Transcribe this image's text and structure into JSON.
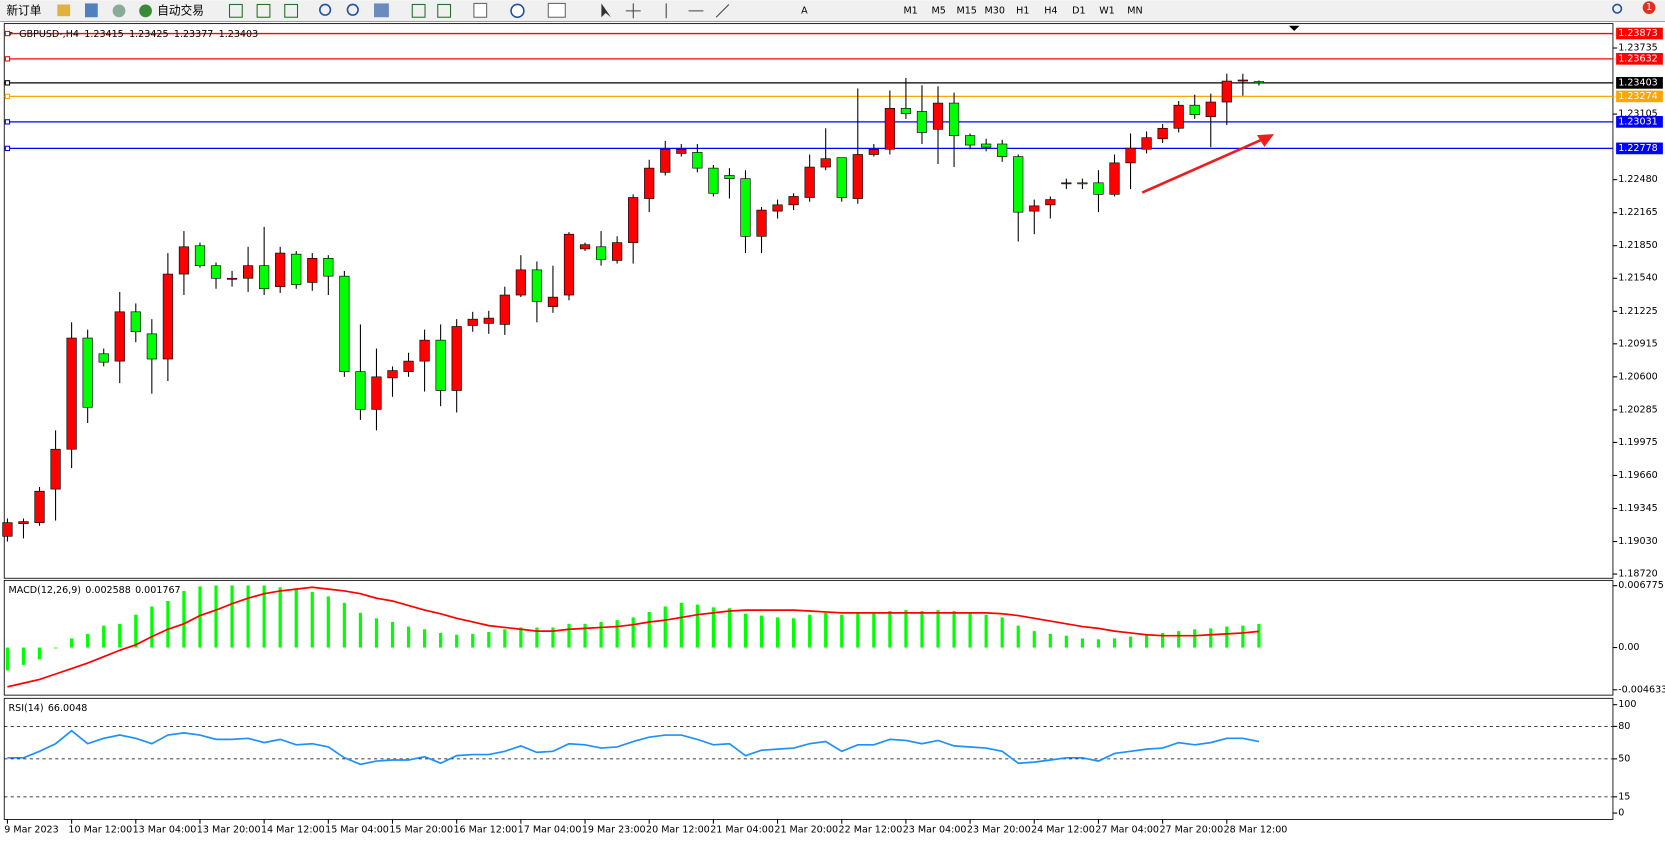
{
  "toolbar": {
    "new_order": "新订单",
    "auto_trading": "自动交易",
    "timeframes": [
      "M1",
      "M5",
      "M15",
      "M30",
      "H1",
      "H4",
      "D1",
      "W1",
      "MN"
    ],
    "badge": "1"
  },
  "chart_data": [
    {
      "type": "candlestick",
      "symbol": "GBPUSD-,H4",
      "categories": [
        "9 Mar 2023",
        null,
        null,
        null,
        "10 Mar 12:00",
        null,
        null,
        null,
        "13 Mar 04:00",
        null,
        null,
        null,
        "13 Mar 20:00",
        null,
        null,
        null,
        "14 Mar 12:00",
        null,
        null,
        null,
        "15 Mar 04:00",
        null,
        null,
        null,
        "15 Mar 20:00",
        null,
        null,
        null,
        "16 Mar 12:00",
        null,
        null,
        null,
        "17 Mar 04:00",
        null,
        null,
        null,
        "19 Mar 23:00",
        null,
        null,
        null,
        "20 Mar 12:00",
        null,
        null,
        null,
        "21 Mar 04:00",
        null,
        null,
        null,
        "21 Mar 20:00",
        null,
        null,
        null,
        "22 Mar 12:00",
        null,
        null,
        null,
        "23 Mar 04:00",
        null,
        null,
        null,
        "23 Mar 20:00",
        null,
        null,
        null,
        "24 Mar 12:00",
        null,
        null,
        null,
        "27 Mar 04:00",
        null,
        null,
        null,
        "27 Mar 20:00",
        null,
        null,
        null,
        "28 Mar 12:00",
        null,
        null
      ],
      "open": [
        1.1908,
        1.192,
        1.1921,
        1.1953,
        1.1991,
        1.2097,
        1.2082,
        1.2075,
        1.2122,
        1.2101,
        1.2077,
        1.2158,
        1.2185,
        1.2166,
        1.2153,
        1.2154,
        1.2166,
        1.2146,
        1.2177,
        1.215,
        1.2173,
        1.2156,
        1.2065,
        1.2029,
        1.2059,
        1.2065,
        1.2075,
        1.2095,
        1.2047,
        1.2109,
        1.2111,
        1.211,
        1.2138,
        1.2162,
        1.2127,
        1.2138,
        1.2182,
        1.2184,
        1.2171,
        1.2188,
        1.223,
        1.2255,
        1.2273,
        1.2274,
        1.2259,
        1.2252,
        1.2249,
        1.2194,
        1.2218,
        1.2224,
        1.2231,
        1.226,
        1.2269,
        1.223,
        1.2272,
        1.2277,
        1.2316,
        1.2313,
        1.2296,
        1.2321,
        1.229,
        1.2282,
        1.2282,
        1.227,
        1.2218,
        1.2224,
        1.2244,
        1.2245,
        1.2245,
        1.2234,
        1.2264,
        1.2277,
        1.2287,
        1.2297,
        1.2319,
        1.2308,
        1.2322,
        1.2342,
        1.23415
      ],
      "high": [
        1.1925,
        1.1925,
        1.1955,
        1.2009,
        1.2112,
        1.2105,
        1.2087,
        1.2141,
        1.213,
        1.2115,
        1.2178,
        1.2199,
        1.2188,
        1.2169,
        1.2161,
        1.2184,
        1.2203,
        1.2184,
        1.218,
        1.2178,
        1.2176,
        1.2161,
        1.211,
        1.2087,
        1.207,
        1.2083,
        1.2105,
        1.211,
        1.2115,
        1.2122,
        1.2123,
        1.2146,
        1.2176,
        1.217,
        1.2166,
        1.2198,
        1.2188,
        1.2199,
        1.2194,
        1.2234,
        1.2267,
        1.2285,
        1.2282,
        1.2282,
        1.2262,
        1.2259,
        1.2257,
        1.2222,
        1.2229,
        1.2235,
        1.2272,
        1.2297,
        1.2269,
        1.2335,
        1.2282,
        1.2333,
        1.2345,
        1.2338,
        1.2337,
        1.2331,
        1.2292,
        1.2287,
        1.2286,
        1.2272,
        1.2229,
        1.2232,
        1.2249,
        1.2249,
        1.2257,
        1.2272,
        1.2292,
        1.2294,
        1.2301,
        1.2323,
        1.2329,
        1.233,
        1.2349,
        1.2349,
        1.23425
      ],
      "low": [
        1.1903,
        1.1906,
        1.1918,
        1.1923,
        1.1973,
        1.2016,
        1.207,
        1.2054,
        1.2093,
        1.2044,
        1.2056,
        1.2138,
        1.2164,
        1.2144,
        1.2146,
        1.2141,
        1.2138,
        1.214,
        1.2144,
        1.2142,
        1.2138,
        1.206,
        1.2019,
        1.2009,
        1.2041,
        1.206,
        1.2046,
        1.2032,
        1.2026,
        1.2103,
        1.2101,
        1.21,
        1.2136,
        1.2112,
        1.2121,
        1.2133,
        1.218,
        1.2166,
        1.2168,
        1.2168,
        1.2217,
        1.2252,
        1.227,
        1.2255,
        1.2232,
        1.223,
        1.2178,
        1.2178,
        1.2211,
        1.2219,
        1.2227,
        1.2257,
        1.2227,
        1.2225,
        1.227,
        1.2272,
        1.2306,
        1.2282,
        1.2263,
        1.226,
        1.2277,
        1.2275,
        1.2265,
        1.2189,
        1.2196,
        1.2211,
        1.2239,
        1.2239,
        1.2217,
        1.2232,
        1.2239,
        1.2273,
        1.2283,
        1.2293,
        1.2306,
        1.2279,
        1.23,
        1.2328,
        1.23377
      ],
      "close": [
        1.1921,
        1.1922,
        1.1951,
        1.1991,
        1.2097,
        1.2031,
        1.2074,
        1.2122,
        1.2103,
        1.2077,
        1.2158,
        1.2184,
        1.2166,
        1.2154,
        1.2154,
        1.2166,
        1.2144,
        1.2178,
        1.2148,
        1.2173,
        1.2156,
        1.2065,
        1.2029,
        1.206,
        1.2066,
        1.2075,
        1.2095,
        1.2047,
        1.2108,
        1.2115,
        1.2116,
        1.2138,
        1.2162,
        1.2132,
        1.2136,
        1.2196,
        1.2186,
        1.2172,
        1.2188,
        1.2231,
        1.2259,
        1.2277,
        1.2277,
        1.2259,
        1.2235,
        1.2249,
        1.2194,
        1.2219,
        1.2224,
        1.2232,
        1.226,
        1.2268,
        1.2231,
        1.2272,
        1.2277,
        1.2316,
        1.2311,
        1.2293,
        1.2321,
        1.229,
        1.2281,
        1.2279,
        1.227,
        1.2217,
        1.2223,
        1.2229,
        1.2245,
        1.2244,
        1.2234,
        1.2264,
        1.2278,
        1.2288,
        1.2297,
        1.2319,
        1.231,
        1.2322,
        1.2342,
        1.2343,
        1.23403
      ],
      "up_color": "#ff0000",
      "down_color": "#00ff00",
      "ylim": [
        1.1869,
        1.23907
      ],
      "yticks": [
        1.23735,
        1.23105,
        {
          "value": 1.2248,
          "label": "1.22480"
        },
        1.22165,
        {
          "value": 1.2185,
          "label": "1.21850"
        },
        {
          "value": 1.2154,
          "label": "1.21540"
        },
        1.21225,
        1.20915,
        {
          "value": 1.206,
          "label": "1.20600"
        },
        1.20285,
        1.19975,
        {
          "value": 1.1966,
          "label": "1.19660"
        },
        1.19345,
        {
          "value": 1.1903,
          "label": "1.19030"
        },
        {
          "value": 1.1872,
          "label": "1.18720"
        }
      ],
      "hlines": [
        {
          "value": 1.23873,
          "color": "#ff0000"
        },
        {
          "value": 1.23632,
          "color": "#ff0000"
        },
        {
          "value": 1.23403,
          "color": "#000000"
        },
        {
          "value": 1.23274,
          "color": "#ffa500"
        },
        {
          "value": 1.23031,
          "color": "#0000ff"
        },
        {
          "value": 1.22778,
          "color": "#0000ff"
        }
      ]
    },
    {
      "type": "macd",
      "title": "MACD(12,26,9)",
      "values": [
        -0.0025,
        -0.0019,
        -0.0013,
        -0.0001,
        0.001,
        0.0015,
        0.0024,
        0.0026,
        0.0036,
        0.0045,
        0.0051,
        0.0062,
        0.0067,
        0.0068,
        0.0068,
        0.0068,
        0.0068,
        0.0066,
        0.0064,
        0.0061,
        0.0056,
        0.0049,
        0.0038,
        0.0032,
        0.0028,
        0.0023,
        0.002,
        0.0016,
        0.0014,
        0.0015,
        0.0017,
        0.002,
        0.0022,
        0.0022,
        0.0022,
        0.0026,
        0.0026,
        0.0028,
        0.003,
        0.0033,
        0.0039,
        0.0045,
        0.0049,
        0.0047,
        0.0044,
        0.0043,
        0.0037,
        0.0035,
        0.0033,
        0.0032,
        0.0036,
        0.0038,
        0.0036,
        0.0038,
        0.0039,
        0.004,
        0.0041,
        0.004,
        0.0041,
        0.004,
        0.0038,
        0.0036,
        0.0033,
        0.0024,
        0.0018,
        0.0015,
        0.0013,
        0.001,
        0.0009,
        0.001,
        0.0012,
        0.0015,
        0.0016,
        0.0018,
        0.002,
        0.0021,
        0.0023,
        0.0024,
        0.002588
      ],
      "color": "#00ff00",
      "signal": [
        -0.0043,
        -0.0039,
        -0.0035,
        -0.0029,
        -0.0023,
        -0.0017,
        -0.001,
        -0.0003,
        0.0003,
        0.0012,
        0.002,
        0.0026,
        0.0035,
        0.0041,
        0.0048,
        0.0054,
        0.0059,
        0.0062,
        0.0064,
        0.0066,
        0.0064,
        0.0062,
        0.0059,
        0.0054,
        0.0051,
        0.0046,
        0.0041,
        0.0037,
        0.0032,
        0.0028,
        0.0024,
        0.0022,
        0.002,
        0.0018,
        0.0018,
        0.002,
        0.0021,
        0.0022,
        0.0023,
        0.0025,
        0.0028,
        0.003,
        0.0033,
        0.0036,
        0.0038,
        0.004,
        0.0041,
        0.0041,
        0.0041,
        0.0041,
        0.004,
        0.0039,
        0.0038,
        0.0038,
        0.0038,
        0.0038,
        0.0038,
        0.0038,
        0.0038,
        0.0038,
        0.0038,
        0.0038,
        0.0037,
        0.0035,
        0.0032,
        0.0029,
        0.0026,
        0.0023,
        0.0021,
        0.0018,
        0.0016,
        0.0014,
        0.0013,
        0.0013,
        0.0013,
        0.0014,
        0.0015,
        0.0016,
        0.001767
      ],
      "signal_color": "#ff0000",
      "ylim": [
        -0.004633,
        0.006775
      ],
      "yticks": [
        0.006775,
        {
          "value": 0,
          "label": "0.00"
        },
        -0.004633
      ]
    },
    {
      "type": "line",
      "title": "RSI(14)",
      "values": [
        51,
        51,
        57,
        64,
        76,
        64,
        69,
        72,
        69,
        64,
        72,
        74,
        72,
        68,
        68,
        69,
        65,
        68,
        63,
        64,
        61,
        51,
        45,
        48,
        49,
        49,
        52,
        46,
        53,
        54,
        54,
        57,
        62,
        56,
        57,
        64,
        63,
        60,
        61,
        66,
        70,
        72,
        72,
        68,
        63,
        64,
        53,
        58,
        59,
        60,
        64,
        66,
        57,
        63,
        63,
        68,
        67,
        64,
        67,
        62,
        61,
        60,
        57,
        46,
        47,
        49,
        51,
        51,
        48,
        55,
        57,
        59,
        60,
        65,
        63,
        65,
        69,
        69,
        66.0048
      ],
      "color": "#1e90ff",
      "ylim": [
        0,
        100
      ],
      "yticks": [
        0,
        15,
        50,
        80,
        100
      ],
      "levels": [
        15,
        50,
        80
      ]
    }
  ]
}
